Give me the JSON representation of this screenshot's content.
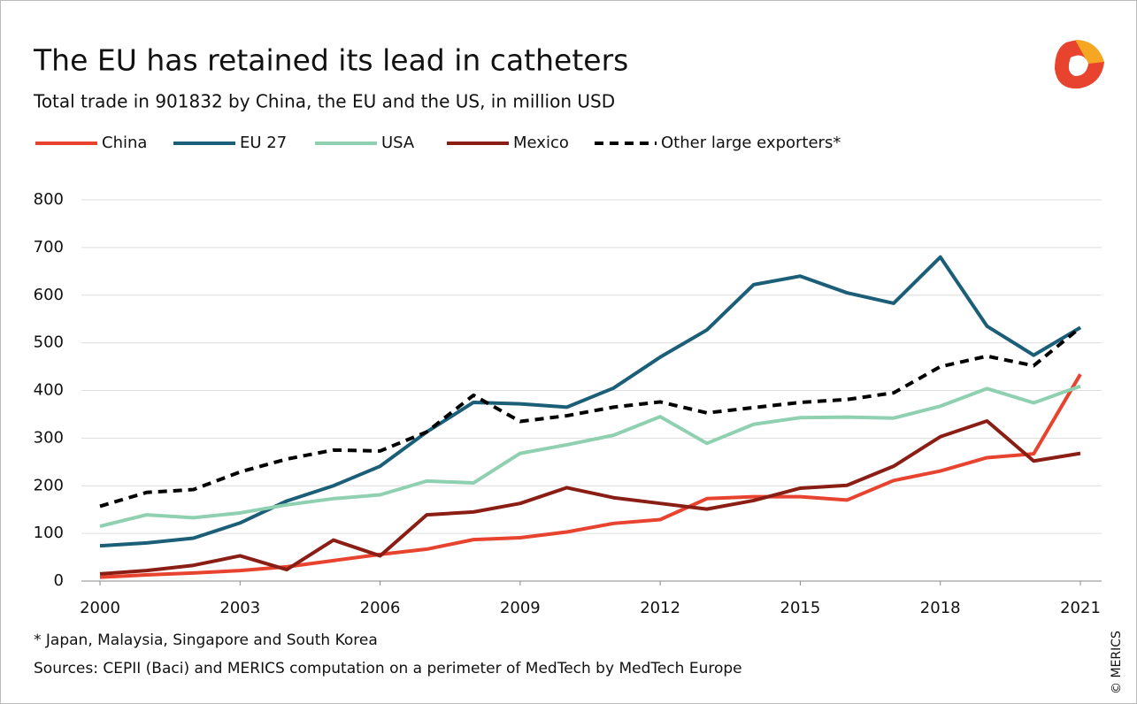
{
  "chart_data": {
    "type": "line",
    "title": "The EU has retained its lead in catheters",
    "subtitle": "Total trade in 901832 by China, the EU and the US, in million USD",
    "x": [
      2000,
      2001,
      2002,
      2003,
      2004,
      2005,
      2006,
      2007,
      2008,
      2009,
      2010,
      2011,
      2012,
      2013,
      2014,
      2015,
      2016,
      2017,
      2018,
      2019,
      2020,
      2021
    ],
    "xlim": [
      2000,
      2021
    ],
    "xticks": [
      2000,
      2003,
      2006,
      2009,
      2012,
      2015,
      2018,
      2021
    ],
    "ylim": [
      0,
      800
    ],
    "yticks": [
      0,
      100,
      200,
      300,
      400,
      500,
      600,
      700,
      800
    ],
    "grid": true,
    "legend": "top",
    "series": [
      {
        "name": "China",
        "color": "#e8432f",
        "values": [
          8,
          13,
          17,
          22,
          30,
          43,
          56,
          67,
          87,
          91,
          103,
          121,
          129,
          173,
          177,
          177,
          170,
          211,
          231,
          259,
          267,
          434
        ]
      },
      {
        "name": "EU 27",
        "color": "#1b5e78",
        "values": [
          74,
          80,
          90,
          122,
          168,
          200,
          241,
          313,
          375,
          372,
          365,
          405,
          470,
          527,
          622,
          640,
          605,
          583,
          680,
          535,
          474,
          532
        ]
      },
      {
        "name": "USA",
        "color": "#8fd0b0",
        "values": [
          115,
          139,
          133,
          143,
          160,
          173,
          181,
          210,
          206,
          268,
          286,
          306,
          345,
          289,
          329,
          343,
          344,
          342,
          367,
          404,
          374,
          409
        ]
      },
      {
        "name": "Mexico",
        "color": "#8b1e14",
        "values": [
          15,
          22,
          33,
          53,
          24,
          86,
          53,
          139,
          145,
          163,
          196,
          175,
          163,
          151,
          169,
          195,
          201,
          241,
          303,
          336,
          252,
          268
        ]
      },
      {
        "name": "Other large exporters*",
        "color": "#000000",
        "dashed": true,
        "values": [
          157,
          186,
          192,
          229,
          256,
          275,
          273,
          313,
          390,
          335,
          347,
          365,
          376,
          353,
          364,
          375,
          381,
          395,
          450,
          472,
          452,
          532
        ]
      }
    ],
    "notes": [
      "* Japan, Malaysia, Singapore and South Korea",
      "Sources: CEPII (Baci) and MERICS computation on a perimeter of MedTech by MedTech Europe"
    ],
    "credit": "© MERICS"
  }
}
